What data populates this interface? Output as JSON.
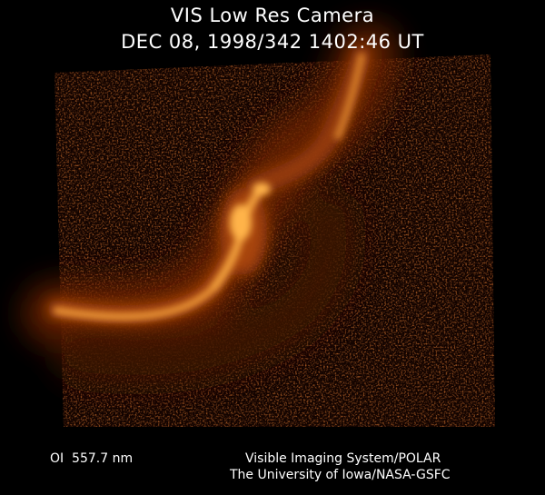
{
  "header": {
    "title": "VIS Low Res Camera",
    "timestamp": "DEC 08, 1998/342 1402:46 UT"
  },
  "footer": {
    "filter": "OI  557.7 nm",
    "credit_line1": "Visible Imaging System/POLAR",
    "credit_line2": "The University of Iowa/NASA-GSFC"
  },
  "colors": {
    "background": "#000000",
    "aurora_core": "#ffb34a",
    "aurora_mid": "#c75a0c",
    "aurora_dim": "#5a1a02",
    "text": "#ffffff"
  }
}
